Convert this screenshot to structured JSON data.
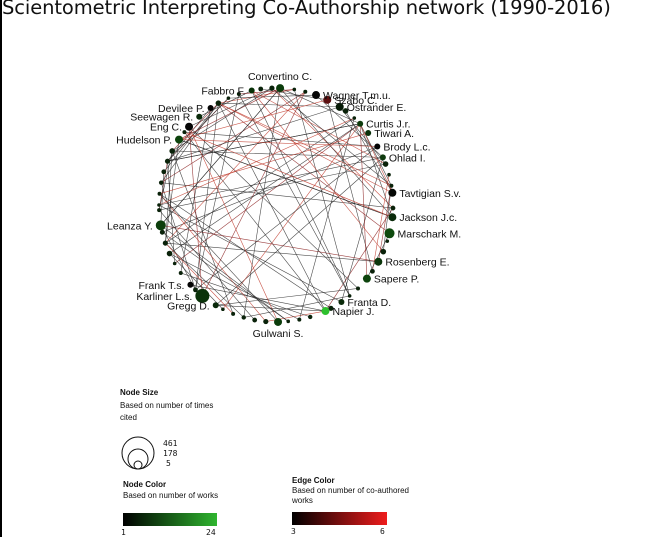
{
  "title": "Scientometric Interpreting Co-Authorship network (1990-2016)",
  "authors": [
    {
      "name": "Fabbro F.",
      "angle": -102,
      "size": 3,
      "color": "#063006"
    },
    {
      "name": "Convertino C.",
      "angle": -88,
      "size": 4,
      "color": "#0b3c0b"
    },
    {
      "name": "Wagner T.m.u.",
      "angle": -70,
      "size": 4,
      "color": "#050505"
    },
    {
      "name": "Szabo C.",
      "angle": -64,
      "size": 4,
      "color": "#5c1010"
    },
    {
      "name": "Ostrander E.",
      "angle": -57,
      "size": 4,
      "color": "#061a06"
    },
    {
      "name": "Curtis J.r.",
      "angle": -44,
      "size": 3,
      "color": "#0c3a0c"
    },
    {
      "name": "Tiwari A.",
      "angle": -38,
      "size": 3,
      "color": "#0a300a"
    },
    {
      "name": "Brody L.c.",
      "angle": -30,
      "size": 3,
      "color": "#030303"
    },
    {
      "name": "Ohlad I.",
      "angle": -24,
      "size": 3,
      "color": "#0e3a0e"
    },
    {
      "name": "Tavtigian S.v.",
      "angle": -6,
      "size": 4,
      "color": "#050805"
    },
    {
      "name": "Jackson J.c.",
      "angle": 6,
      "size": 4,
      "color": "#0a2a0a"
    },
    {
      "name": "Marschark M.",
      "angle": 14,
      "size": 5,
      "color": "#0e4a0e"
    },
    {
      "name": "Rosenberg E.",
      "angle": 29,
      "size": 4,
      "color": "#0b360b"
    },
    {
      "name": "Sapere P.",
      "angle": 39,
      "size": 4,
      "color": "#0d440d"
    },
    {
      "name": "Franta D.",
      "angle": 56,
      "size": 3,
      "color": "#0a2a0a"
    },
    {
      "name": "Napier J.",
      "angle": 65,
      "size": 4,
      "color": "#2ec02e"
    },
    {
      "name": "Gulwani S.",
      "angle": 89,
      "size": 4,
      "color": "#0b3c0b"
    },
    {
      "name": "Gregg D.",
      "angle": 121,
      "size": 3,
      "color": "#0a2a0a"
    },
    {
      "name": "Karliner L.s.",
      "angle": 129,
      "size": 7,
      "color": "#0a330a"
    },
    {
      "name": "Frank T.s.",
      "angle": 137,
      "size": 3,
      "color": "#040404"
    },
    {
      "name": "Leanza Y.",
      "angle": 170,
      "size": 5,
      "color": "#0c3e0c"
    },
    {
      "name": "Hudelson P.",
      "angle": 214,
      "size": 4,
      "color": "#0d440d"
    },
    {
      "name": "Eng C.",
      "angle": 222,
      "size": 4,
      "color": "#050505"
    },
    {
      "name": "Seewagen R.",
      "angle": 229,
      "size": 3,
      "color": "#0a2a0a"
    },
    {
      "name": "Devilee P.",
      "angle": 236,
      "size": 3,
      "color": "#050505"
    }
  ],
  "legend": {
    "node_size": {
      "heading": "Node Size",
      "caption": "Based on number of times cited",
      "values": [
        "461",
        "178",
        "5"
      ]
    },
    "node_color": {
      "heading": "Node Color",
      "caption": "Based on number of works",
      "min": "1",
      "max": "24",
      "colors": [
        "#000000",
        "#2fb52f"
      ]
    },
    "edge_color": {
      "heading": "Edge Color",
      "caption": "Based on number of co-authored works",
      "min": "3",
      "max": "6",
      "colors": [
        "#000000",
        "#ee1c1c"
      ]
    }
  }
}
